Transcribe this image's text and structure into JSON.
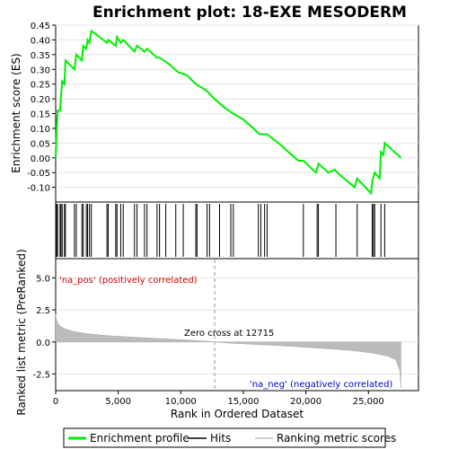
{
  "chart_data": {
    "type": "line",
    "title": "Enrichment plot: 18-EXE MESODERM",
    "top_panel": {
      "ylabel": "Enrichment score (ES)",
      "ylim": [
        -0.15,
        0.45
      ],
      "yticks": [
        "0.45",
        "0.40",
        "0.35",
        "0.30",
        "0.25",
        "0.20",
        "0.15",
        "0.10",
        "0.05",
        "0.00",
        "-0.05",
        "-0.10"
      ],
      "series_color": "#00ee00",
      "points": [
        [
          0,
          0.0
        ],
        [
          80,
          0.1
        ],
        [
          150,
          0.16
        ],
        [
          350,
          0.16
        ],
        [
          420,
          0.21
        ],
        [
          520,
          0.26
        ],
        [
          700,
          0.25
        ],
        [
          780,
          0.33
        ],
        [
          1500,
          0.3
        ],
        [
          1650,
          0.35
        ],
        [
          2100,
          0.33
        ],
        [
          2200,
          0.38
        ],
        [
          2450,
          0.37
        ],
        [
          2550,
          0.4
        ],
        [
          2700,
          0.39
        ],
        [
          2850,
          0.43
        ],
        [
          3200,
          0.42
        ],
        [
          4100,
          0.39
        ],
        [
          4200,
          0.4
        ],
        [
          4800,
          0.38
        ],
        [
          4900,
          0.41
        ],
        [
          5200,
          0.39
        ],
        [
          5400,
          0.4
        ],
        [
          6300,
          0.36
        ],
        [
          6500,
          0.38
        ],
        [
          7100,
          0.36
        ],
        [
          7300,
          0.37
        ],
        [
          8100,
          0.34
        ],
        [
          8300,
          0.34
        ],
        [
          9000,
          0.32
        ],
        [
          9800,
          0.29
        ],
        [
          10500,
          0.28
        ],
        [
          11200,
          0.25
        ],
        [
          12000,
          0.23
        ],
        [
          12700,
          0.2
        ],
        [
          13500,
          0.17
        ],
        [
          14200,
          0.15
        ],
        [
          15000,
          0.13
        ],
        [
          15800,
          0.1
        ],
        [
          16300,
          0.08
        ],
        [
          16600,
          0.08
        ],
        [
          16900,
          0.08
        ],
        [
          17800,
          0.05
        ],
        [
          18600,
          0.02
        ],
        [
          19400,
          -0.01
        ],
        [
          19800,
          -0.01
        ],
        [
          20800,
          -0.05
        ],
        [
          21000,
          -0.02
        ],
        [
          21800,
          -0.05
        ],
        [
          22300,
          -0.04
        ],
        [
          22500,
          -0.05
        ],
        [
          23900,
          -0.1
        ],
        [
          24100,
          -0.07
        ],
        [
          25200,
          -0.12
        ],
        [
          25300,
          -0.08
        ],
        [
          25500,
          -0.05
        ],
        [
          25900,
          -0.07
        ],
        [
          26000,
          0.02
        ],
        [
          26200,
          0.01
        ],
        [
          26300,
          0.05
        ],
        [
          27600,
          0.0
        ]
      ]
    },
    "hits": [
      80,
      150,
      350,
      420,
      520,
      700,
      780,
      1500,
      1650,
      2100,
      2200,
      2450,
      2550,
      2700,
      2850,
      4100,
      4200,
      4800,
      4900,
      5200,
      5400,
      6300,
      6500,
      7100,
      7300,
      8100,
      8300,
      8800,
      9600,
      10200,
      11200,
      11300,
      12100,
      12300,
      13100,
      14000,
      14200,
      16200,
      16400,
      16700,
      16900,
      19800,
      20900,
      21000,
      22400,
      24100,
      25300,
      25400,
      25500,
      26000,
      26300
    ],
    "bottom_panel": {
      "ylabel": "Ranked list metric (PreRanked)",
      "xlabel": "Rank in Ordered Dataset",
      "ylim": [
        -3.8,
        6.5
      ],
      "yticks": [
        "5.0",
        "2.5",
        "0.0",
        "-2.5"
      ],
      "xticks": [
        "0",
        "5,000",
        "10,000",
        "15,000",
        "20,000",
        "25,000"
      ],
      "pos_label": "'na_pos' (positively correlated)",
      "neg_label": "'na_neg' (negatively correlated)",
      "zero_cross_label": "Zero cross at 12715",
      "zero_cross": 12715,
      "n": 27600,
      "metric_curve": [
        [
          0,
          2.2
        ],
        [
          40,
          1.8
        ],
        [
          150,
          1.5
        ],
        [
          400,
          1.2
        ],
        [
          800,
          1.0
        ],
        [
          1500,
          0.8
        ],
        [
          2500,
          0.65
        ],
        [
          4000,
          0.5
        ],
        [
          6000,
          0.38
        ],
        [
          8000,
          0.28
        ],
        [
          10000,
          0.18
        ],
        [
          12000,
          0.06
        ],
        [
          12715,
          0.0
        ],
        [
          14000,
          -0.1
        ],
        [
          16000,
          -0.2
        ],
        [
          18000,
          -0.3
        ],
        [
          20000,
          -0.42
        ],
        [
          22000,
          -0.55
        ],
        [
          24000,
          -0.7
        ],
        [
          25500,
          -0.9
        ],
        [
          26500,
          -1.1
        ],
        [
          27200,
          -1.4
        ],
        [
          27500,
          -2.2
        ],
        [
          27600,
          -3.6
        ]
      ]
    },
    "legend": {
      "items": [
        {
          "label": "Enrichment profile",
          "color": "#00ee00"
        },
        {
          "label": "Hits",
          "color": "#000000"
        },
        {
          "label": "Ranking metric scores",
          "color": "#bbbbbb"
        }
      ]
    },
    "xlim": [
      0,
      29000
    ]
  }
}
